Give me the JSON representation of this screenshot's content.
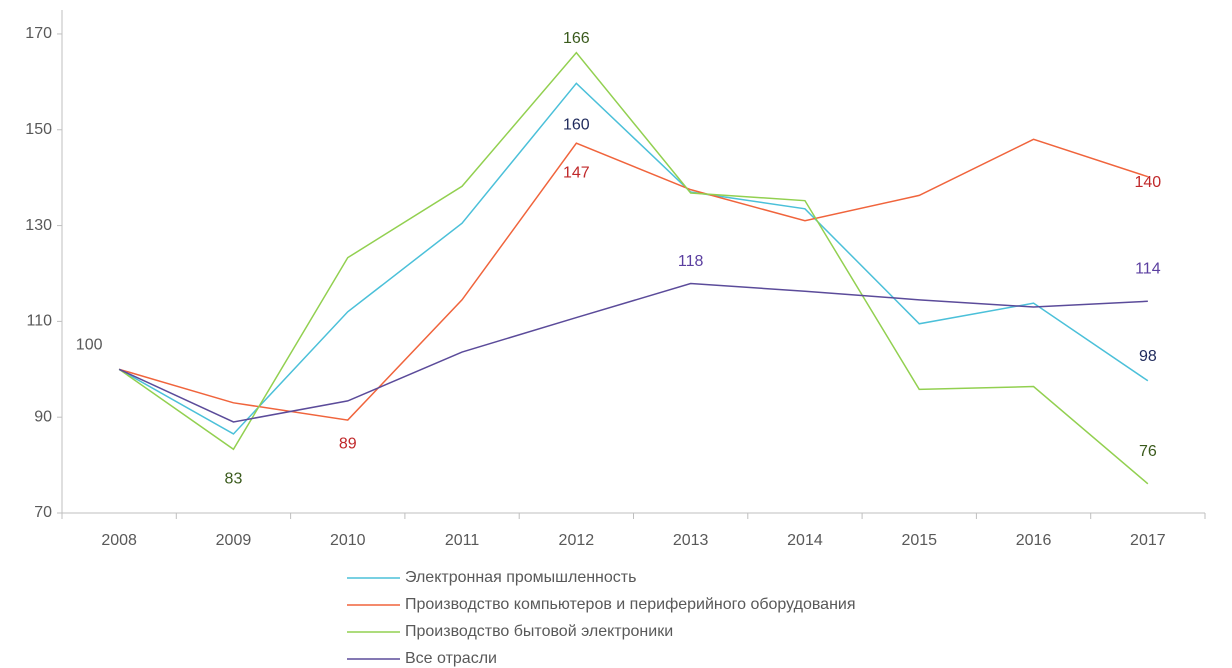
{
  "chart_data": {
    "type": "line",
    "categories": [
      "2008",
      "2009",
      "2010",
      "2011",
      "2012",
      "2013",
      "2014",
      "2015",
      "2016",
      "2017"
    ],
    "ylim": [
      70,
      175
    ],
    "yticks": [
      70,
      90,
      110,
      130,
      150,
      170
    ],
    "series": [
      {
        "name": "Электронная промышленность",
        "color": "#4bc0d9",
        "values": [
          100,
          86.5,
          112,
          130.5,
          159.7,
          137,
          133.5,
          109.5,
          113.8,
          97.6
        ],
        "value_labels": [
          null,
          null,
          null,
          null,
          "160",
          null,
          null,
          null,
          null,
          "98"
        ],
        "label_colors": [
          null,
          null,
          null,
          null,
          "#1f2a5c",
          null,
          null,
          null,
          null,
          "#1f2a5c"
        ]
      },
      {
        "name": "Производство компьютеров и периферийного оборудования",
        "color": "#f0643c",
        "values": [
          100,
          93,
          89.4,
          114.5,
          147.2,
          137.5,
          131,
          136.3,
          148,
          140.2
        ],
        "value_labels": [
          null,
          null,
          "89",
          null,
          "147",
          null,
          null,
          null,
          null,
          "140"
        ],
        "label_colors": [
          null,
          null,
          "#c0282a",
          null,
          "#c0282a",
          null,
          null,
          null,
          null,
          "#c0282a"
        ]
      },
      {
        "name": "Производство бытовой электроники",
        "color": "#92d050",
        "values": [
          100,
          83.3,
          123.3,
          138.2,
          166.1,
          136.8,
          135.2,
          95.8,
          96.4,
          76.1
        ],
        "value_labels": [
          null,
          "83",
          null,
          null,
          "166",
          null,
          null,
          null,
          null,
          "76"
        ],
        "label_colors": [
          null,
          "#3a5a1c",
          null,
          null,
          "#3a5a1c",
          null,
          null,
          null,
          null,
          "#3a5a1c"
        ]
      },
      {
        "name": "Все отрасли",
        "color": "#5b4b9a",
        "values": [
          100,
          89,
          93.4,
          103.6,
          110.8,
          117.9,
          116.3,
          114.5,
          113,
          114.2
        ],
        "value_labels": [
          "100",
          null,
          null,
          null,
          null,
          "118",
          null,
          null,
          null,
          "114"
        ],
        "label_colors": [
          "#595959",
          null,
          null,
          null,
          null,
          "#5b3fa0",
          null,
          null,
          null,
          "#5b3fa0"
        ]
      }
    ]
  }
}
